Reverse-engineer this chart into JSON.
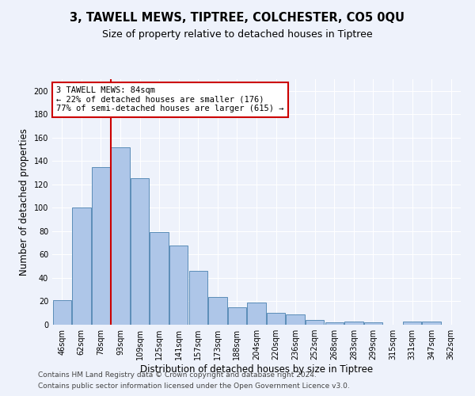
{
  "title": "3, TAWELL MEWS, TIPTREE, COLCHESTER, CO5 0QU",
  "subtitle": "Size of property relative to detached houses in Tiptree",
  "xlabel": "Distribution of detached houses by size in Tiptree",
  "ylabel": "Number of detached properties",
  "categories": [
    "46sqm",
    "62sqm",
    "78sqm",
    "93sqm",
    "109sqm",
    "125sqm",
    "141sqm",
    "157sqm",
    "173sqm",
    "188sqm",
    "204sqm",
    "220sqm",
    "236sqm",
    "252sqm",
    "268sqm",
    "283sqm",
    "299sqm",
    "315sqm",
    "331sqm",
    "347sqm",
    "362sqm"
  ],
  "values": [
    21,
    100,
    135,
    152,
    125,
    79,
    68,
    46,
    24,
    15,
    19,
    10,
    9,
    4,
    2,
    3,
    2,
    0,
    3,
    3,
    0
  ],
  "bar_color": "#aec6e8",
  "bar_edge_color": "#5b8db8",
  "highlight_annotation": "3 TAWELL MEWS: 84sqm\n← 22% of detached houses are smaller (176)\n77% of semi-detached houses are larger (615) →",
  "annotation_box_color": "#ffffff",
  "annotation_box_edge_color": "#cc0000",
  "annotation_text_color": "#000000",
  "vline_color": "#cc0000",
  "vline_x_index": 2.5,
  "ylim": [
    0,
    210
  ],
  "yticks": [
    0,
    20,
    40,
    60,
    80,
    100,
    120,
    140,
    160,
    180,
    200
  ],
  "footer1": "Contains HM Land Registry data © Crown copyright and database right 2024.",
  "footer2": "Contains public sector information licensed under the Open Government Licence v3.0.",
  "background_color": "#eef2fb",
  "title_fontsize": 10.5,
  "subtitle_fontsize": 9,
  "xlabel_fontsize": 8.5,
  "ylabel_fontsize": 8.5,
  "tick_fontsize": 7,
  "annotation_fontsize": 7.5,
  "footer_fontsize": 6.5
}
